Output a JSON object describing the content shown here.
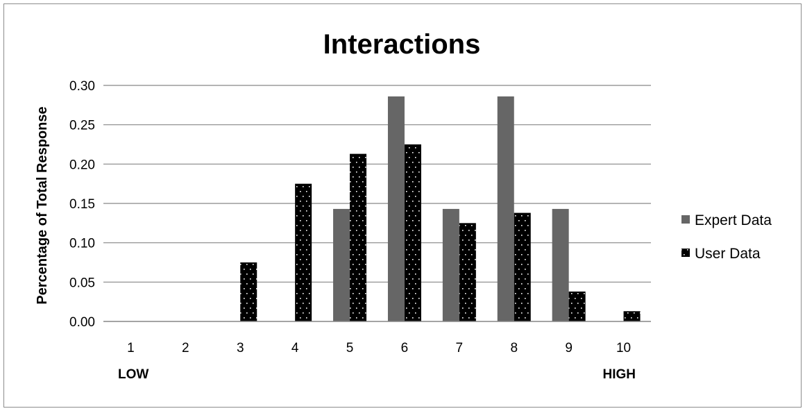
{
  "chart_data": {
    "type": "bar",
    "title": "Interactions",
    "xlabel": "",
    "ylabel": "Percentage of Total Response",
    "categories": [
      "1",
      "2",
      "3",
      "4",
      "5",
      "6",
      "7",
      "8",
      "9",
      "10"
    ],
    "series": [
      {
        "name": "Expert Data",
        "color": "#666666",
        "pattern": "solid",
        "values": [
          0,
          0,
          0,
          0,
          0.143,
          0.286,
          0.143,
          0.286,
          0.143,
          0
        ]
      },
      {
        "name": "User Data",
        "color": "#000000",
        "pattern": "dotted",
        "values": [
          0,
          0,
          0.075,
          0.175,
          0.213,
          0.225,
          0.125,
          0.138,
          0.038,
          0.013
        ]
      }
    ],
    "ylim": [
      0,
      0.3
    ],
    "yticks": [
      "0.00",
      "0.05",
      "0.10",
      "0.15",
      "0.20",
      "0.25",
      "0.30"
    ],
    "grid": true,
    "legend_position": "right",
    "annotations": {
      "low_label": "LOW",
      "high_label": "HIGH"
    }
  }
}
